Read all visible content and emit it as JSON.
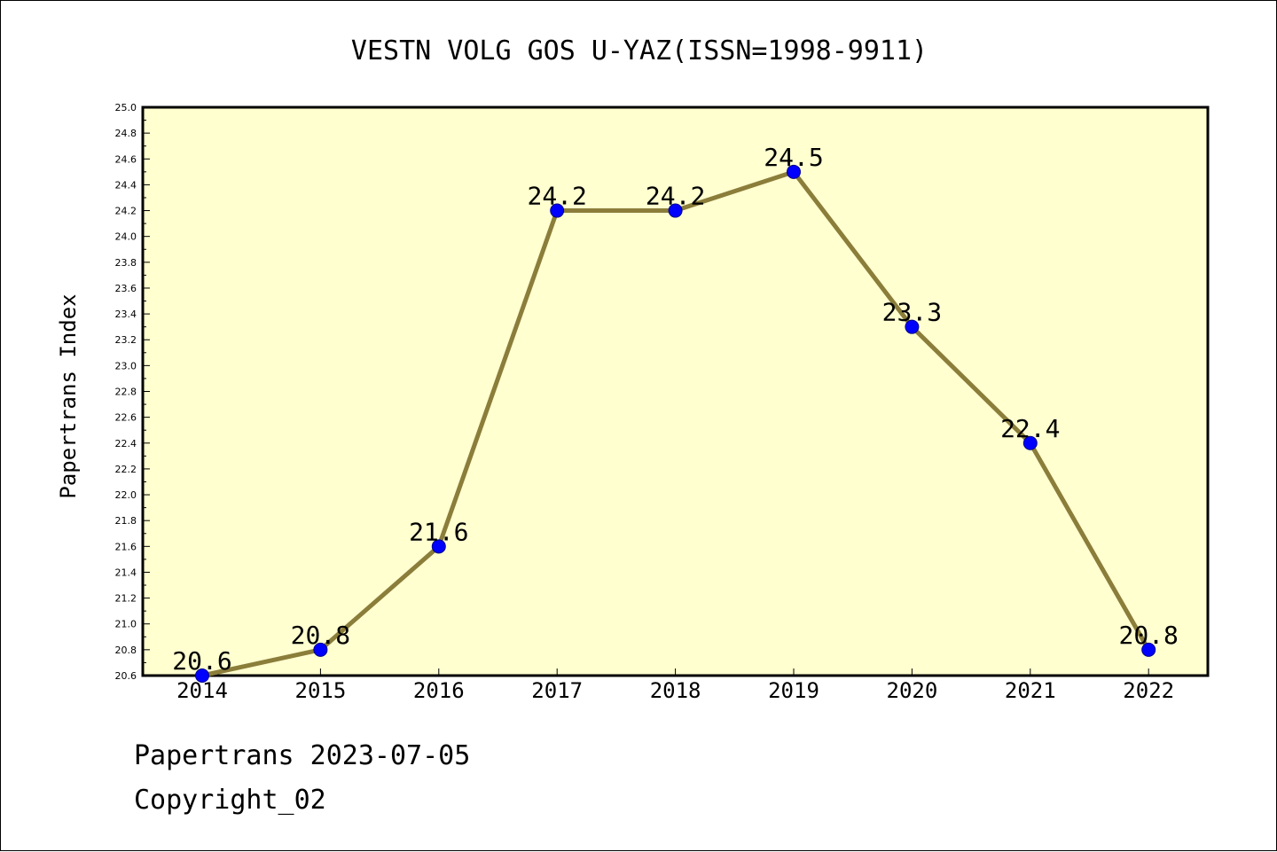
{
  "chart_data": {
    "type": "line",
    "title": "VESTN VOLG GOS U-YAZ(ISSN=1998-9911)",
    "xlabel": "",
    "ylabel": "Papertrans Index",
    "categories": [
      "2014",
      "2015",
      "2016",
      "2017",
      "2018",
      "2019",
      "2020",
      "2021",
      "2022"
    ],
    "series": [
      {
        "name": "Papertrans Index",
        "values": [
          20.6,
          20.8,
          21.6,
          24.2,
          24.2,
          24.5,
          23.3,
          22.4,
          20.8
        ],
        "labels": [
          "20.6",
          "20.8",
          "21.6",
          "24.2",
          "24.2",
          "24.5",
          "23.3",
          "22.4",
          "20.8"
        ]
      }
    ],
    "ylim": [
      20.6,
      25.0
    ],
    "yticks": [
      "20.6",
      "20.8",
      "21.0",
      "21.2",
      "21.4",
      "21.6",
      "21.8",
      "22.0",
      "22.2",
      "22.4",
      "22.6",
      "22.8",
      "23.0",
      "23.2",
      "23.4",
      "23.6",
      "23.8",
      "24.0",
      "24.2",
      "24.4",
      "24.6",
      "24.8",
      "25.0"
    ],
    "grid": false,
    "colors": {
      "plot_background": "#ffffd0",
      "line": "#8b7d3a",
      "marker": "#0000ff"
    }
  },
  "footer": {
    "date_line": "Papertrans 2023-07-05",
    "copyright": "Copyright_02"
  }
}
